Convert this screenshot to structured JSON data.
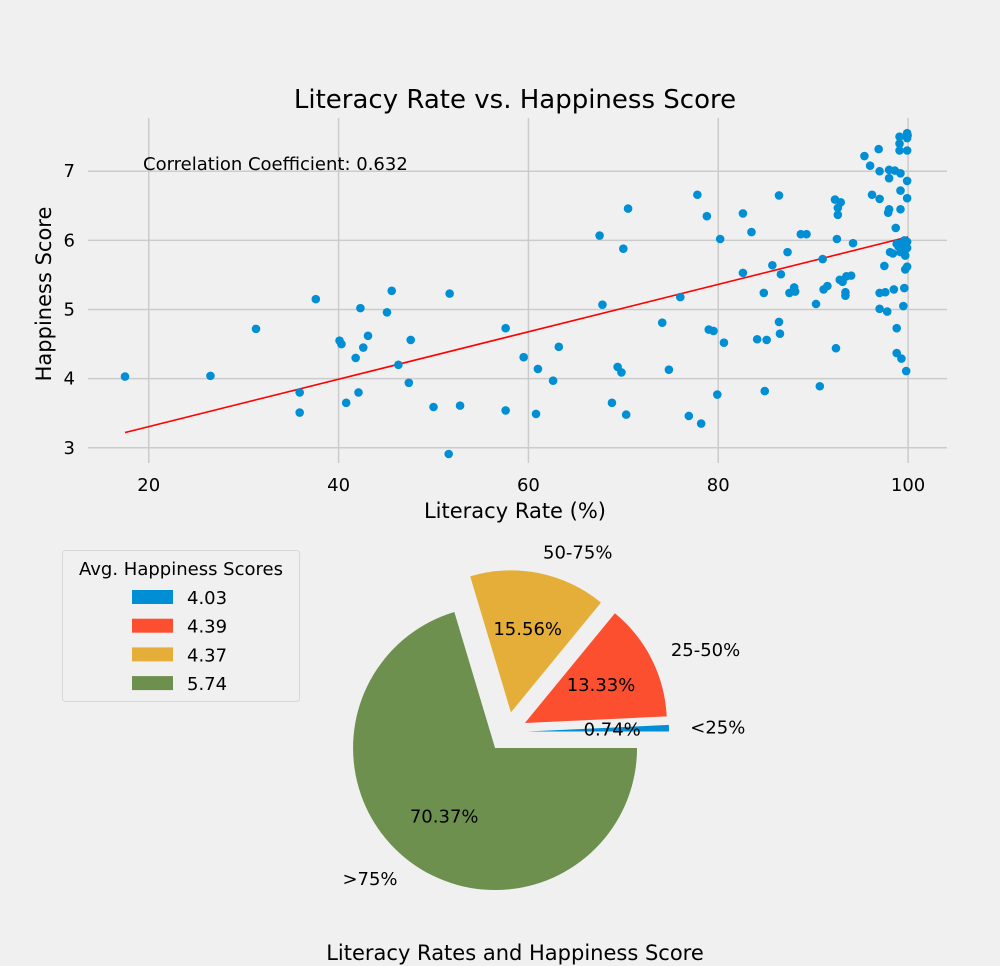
{
  "chart_data": [
    {
      "type": "scatter",
      "title": "Literacy Rate vs. Happiness Score",
      "xlabel": "Literacy Rate (%)",
      "ylabel": "Happiness Score",
      "xlim": [
        13.6,
        104.1
      ],
      "ylim": [
        2.78,
        7.77
      ],
      "xticks": [
        20,
        40,
        60,
        80,
        100
      ],
      "yticks": [
        3,
        4,
        5,
        6,
        7
      ],
      "grid": true,
      "annotation": "Correlation Coefficient: 0.632",
      "colors": {
        "points": "#008fd5",
        "trend": "#ff0000",
        "grid": "#cbcbcb",
        "background": "#f0f0f0"
      },
      "trendline": {
        "x": [
          17.5,
          100
        ],
        "y": [
          3.22,
          6.05
        ]
      },
      "points": [
        [
          17.5,
          4.03
        ],
        [
          26.5,
          4.04
        ],
        [
          31.3,
          4.72
        ],
        [
          35.9,
          3.8
        ],
        [
          35.9,
          3.51
        ],
        [
          37.6,
          5.15
        ],
        [
          40.1,
          4.55
        ],
        [
          40.3,
          4.5
        ],
        [
          40.8,
          3.65
        ],
        [
          41.8,
          4.3
        ],
        [
          42.1,
          3.8
        ],
        [
          42.3,
          5.02
        ],
        [
          42.6,
          4.45
        ],
        [
          43.1,
          4.62
        ],
        [
          45.1,
          4.96
        ],
        [
          45.6,
          5.27
        ],
        [
          46.3,
          4.2
        ],
        [
          47.4,
          3.94
        ],
        [
          47.6,
          4.56
        ],
        [
          50.0,
          3.59
        ],
        [
          51.6,
          2.91
        ],
        [
          51.7,
          5.23
        ],
        [
          52.8,
          3.61
        ],
        [
          57.6,
          3.54
        ],
        [
          57.6,
          4.73
        ],
        [
          59.5,
          4.31
        ],
        [
          60.8,
          3.49
        ],
        [
          61.0,
          4.14
        ],
        [
          62.6,
          3.97
        ],
        [
          63.2,
          4.46
        ],
        [
          67.5,
          6.07
        ],
        [
          67.8,
          5.07
        ],
        [
          68.8,
          3.65
        ],
        [
          69.4,
          4.17
        ],
        [
          69.8,
          4.09
        ],
        [
          70.0,
          5.88
        ],
        [
          70.3,
          3.48
        ],
        [
          70.5,
          6.46
        ],
        [
          74.1,
          4.81
        ],
        [
          74.8,
          4.13
        ],
        [
          76.0,
          5.18
        ],
        [
          76.9,
          3.46
        ],
        [
          77.8,
          6.66
        ],
        [
          78.2,
          3.35
        ],
        [
          78.8,
          6.35
        ],
        [
          79.0,
          4.71
        ],
        [
          79.5,
          4.69
        ],
        [
          79.9,
          3.77
        ],
        [
          80.2,
          6.02
        ],
        [
          80.6,
          4.52
        ],
        [
          82.6,
          6.39
        ],
        [
          82.6,
          5.53
        ],
        [
          83.5,
          6.12
        ],
        [
          84.1,
          4.57
        ],
        [
          84.8,
          5.24
        ],
        [
          84.9,
          3.82
        ],
        [
          85.1,
          4.56
        ],
        [
          85.7,
          5.64
        ],
        [
          86.4,
          6.65
        ],
        [
          86.4,
          4.82
        ],
        [
          86.5,
          4.65
        ],
        [
          86.6,
          5.51
        ],
        [
          87.3,
          5.83
        ],
        [
          87.5,
          5.24
        ],
        [
          88.0,
          5.32
        ],
        [
          88.1,
          5.26
        ],
        [
          88.7,
          6.09
        ],
        [
          89.3,
          6.09
        ],
        [
          90.3,
          5.08
        ],
        [
          90.7,
          3.89
        ],
        [
          91.0,
          5.73
        ],
        [
          91.1,
          5.29
        ],
        [
          91.5,
          5.34
        ],
        [
          92.3,
          6.59
        ],
        [
          92.4,
          4.44
        ],
        [
          92.5,
          6.02
        ],
        [
          92.6,
          6.37
        ],
        [
          92.6,
          6.47
        ],
        [
          92.8,
          5.43
        ],
        [
          92.9,
          6.55
        ],
        [
          93.1,
          5.4
        ],
        [
          93.4,
          5.2
        ],
        [
          93.4,
          5.25
        ],
        [
          93.5,
          5.48
        ],
        [
          94.0,
          5.49
        ],
        [
          94.2,
          5.96
        ],
        [
          95.4,
          7.22
        ],
        [
          96.0,
          7.08
        ],
        [
          96.2,
          6.66
        ],
        [
          96.9,
          7.32
        ],
        [
          97.0,
          7.0
        ],
        [
          97.0,
          6.6
        ],
        [
          97.0,
          5.24
        ],
        [
          97.0,
          5.01
        ],
        [
          97.5,
          5.63
        ],
        [
          97.6,
          5.25
        ],
        [
          97.8,
          4.97
        ],
        [
          97.9,
          6.4
        ],
        [
          98.0,
          7.02
        ],
        [
          98.0,
          6.45
        ],
        [
          98.0,
          6.9
        ],
        [
          98.1,
          5.83
        ],
        [
          98.4,
          5.81
        ],
        [
          98.5,
          5.29
        ],
        [
          98.6,
          7.01
        ],
        [
          98.7,
          6.18
        ],
        [
          98.8,
          5.95
        ],
        [
          98.8,
          4.73
        ],
        [
          98.8,
          4.37
        ],
        [
          99.0,
          5.91
        ],
        [
          99.1,
          7.5
        ],
        [
          99.1,
          7.4
        ],
        [
          99.1,
          7.3
        ],
        [
          99.2,
          6.72
        ],
        [
          99.2,
          6.97
        ],
        [
          99.2,
          6.45
        ],
        [
          99.2,
          5.83
        ],
        [
          99.2,
          5.95
        ],
        [
          99.3,
          4.29
        ],
        [
          99.5,
          5.05
        ],
        [
          99.6,
          5.31
        ],
        [
          99.6,
          6.0
        ],
        [
          99.7,
          5.58
        ],
        [
          99.7,
          5.78
        ],
        [
          99.8,
          5.88
        ],
        [
          99.8,
          4.11
        ],
        [
          99.9,
          7.55
        ],
        [
          99.9,
          7.48
        ],
        [
          99.9,
          7.3
        ],
        [
          99.9,
          6.86
        ],
        [
          99.9,
          6.61
        ],
        [
          99.9,
          5.98
        ],
        [
          99.9,
          5.89
        ],
        [
          99.9,
          5.62
        ],
        [
          99.95,
          7.52
        ]
      ]
    },
    {
      "type": "pie",
      "title": "Literacy Rates and Happiness Score",
      "legend_title": "Avg. Happiness Scores",
      "legend_placement": "upper-left",
      "slices": [
        {
          "label": "<25%",
          "pct": 0.74,
          "pct_label": "0.74%",
          "legend": "4.03",
          "color": "#008fd5"
        },
        {
          "label": "25-50%",
          "pct": 13.33,
          "pct_label": "13.33%",
          "legend": "4.39",
          "color": "#fc4f30"
        },
        {
          "label": "50-75%",
          "pct": 15.56,
          "pct_label": "15.56%",
          "legend": "4.37",
          "color": "#e5ae38"
        },
        {
          "label": ">75%",
          "pct": 70.37,
          "pct_label": "70.37%",
          "legend": "5.74",
          "color": "#6d904f"
        }
      ]
    }
  ]
}
